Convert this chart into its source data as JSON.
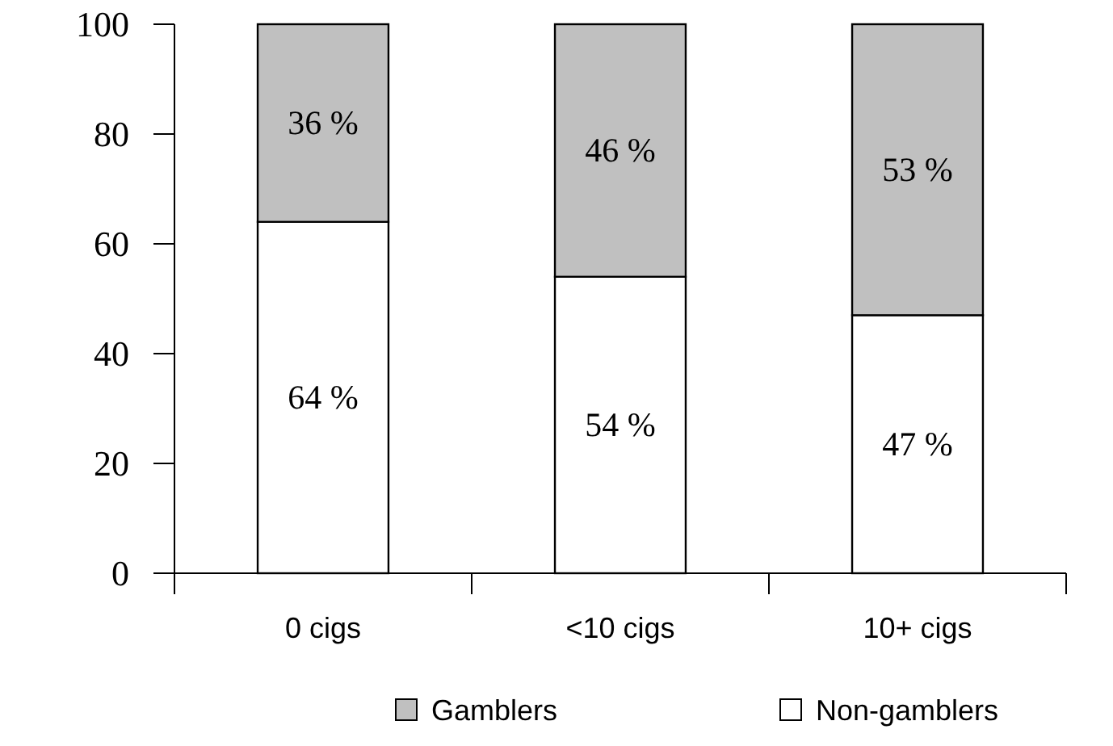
{
  "chart_data": {
    "type": "bar",
    "stacked": true,
    "categories": [
      "0 cigs",
      "<10 cigs",
      "10+ cigs"
    ],
    "series": [
      {
        "name": "Non-gamblers",
        "color": "#ffffff",
        "values": [
          64,
          54,
          47
        ],
        "value_labels": [
          "64 %",
          "54 %",
          "47 %"
        ]
      },
      {
        "name": "Gamblers",
        "color": "#c0c0c0",
        "values": [
          36,
          46,
          53
        ],
        "value_labels": [
          "36 %",
          "46 %",
          "53 %"
        ]
      }
    ],
    "ylim": [
      0,
      100
    ],
    "yticks": [
      0,
      20,
      40,
      60,
      80,
      100
    ],
    "legend": "bottom",
    "grid": false
  }
}
